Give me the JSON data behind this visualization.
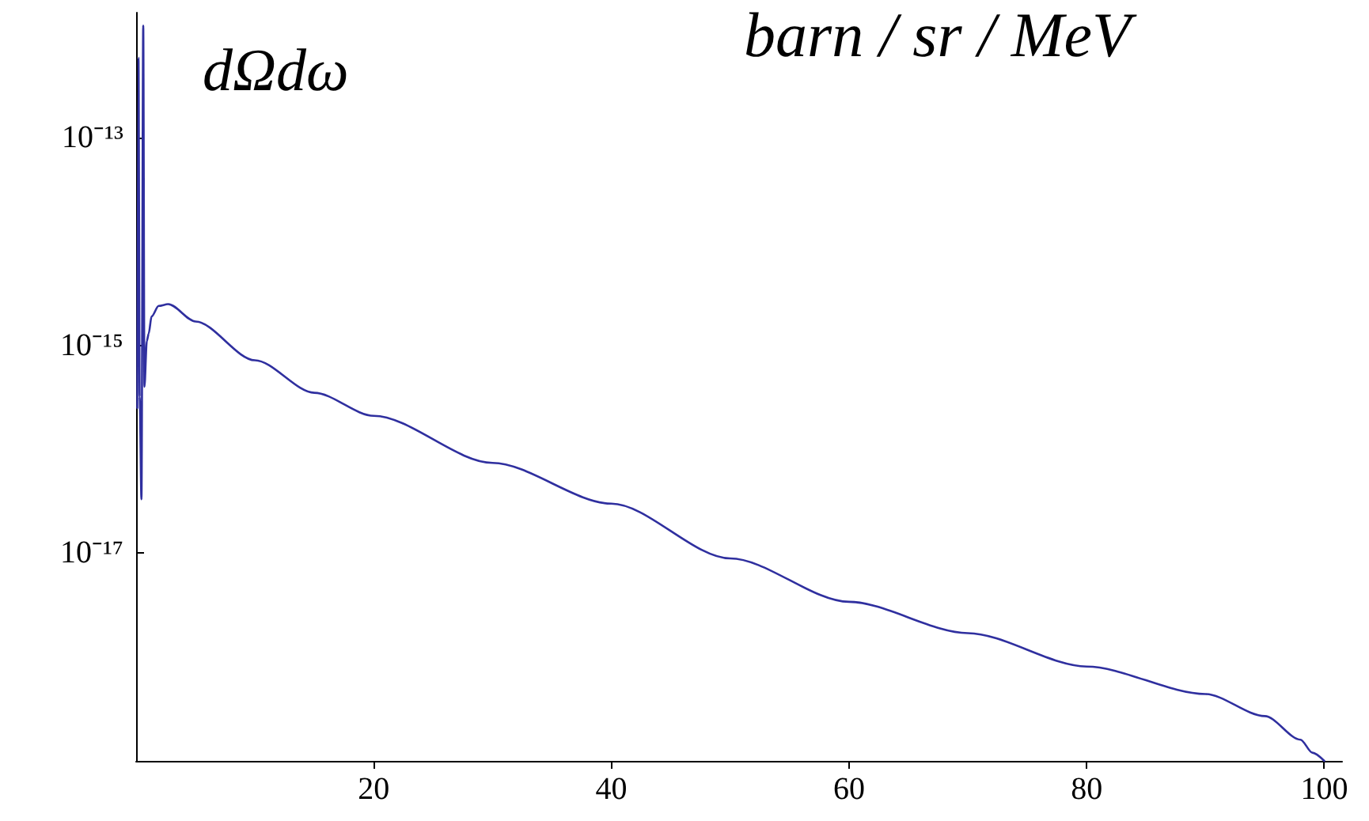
{
  "chart_data": {
    "type": "line",
    "ylabel": "dΩdω",
    "annotations": [
      "barn / sr / MeV"
    ],
    "x": [
      0.1,
      0.2,
      0.3,
      0.45,
      0.6,
      0.7,
      0.9,
      1.06,
      1.3,
      1.9,
      2.7,
      5,
      10,
      15,
      20,
      30,
      40,
      50,
      60,
      70,
      80,
      90,
      95,
      98,
      99,
      100
    ],
    "series": [
      {
        "color": "#2f2f9f",
        "values": [
          2.5e-16,
          5.9e-13,
          3.2e-16,
          3.3e-17,
          1.2e-12,
          4e-16,
          1.1e-15,
          1.3e-15,
          1.9e-15,
          2.4e-15,
          2.5e-15,
          1.7e-15,
          7.2e-16,
          3.5e-16,
          2.1e-16,
          7.4e-17,
          3e-17,
          8.9e-18,
          3.4e-18,
          1.7e-18,
          8.1e-19,
          4.4e-19,
          2.7e-19,
          1.6e-19,
          1.2e-19,
          1e-19
        ]
      }
    ],
    "xlim": [
      0,
      101.5
    ],
    "xticks": [
      20,
      40,
      60,
      80,
      100
    ],
    "ylim": [
      1e-19,
      1.6e-12
    ],
    "yticks": [
      {
        "value": 1e-13,
        "label": "10⁻¹³"
      },
      {
        "value": 1e-15,
        "label": "10⁻¹⁵"
      },
      {
        "value": 1e-17,
        "label": "10⁻¹⁷"
      }
    ],
    "log": "y",
    "grid": false,
    "marker": "none",
    "line_style": "solid"
  }
}
